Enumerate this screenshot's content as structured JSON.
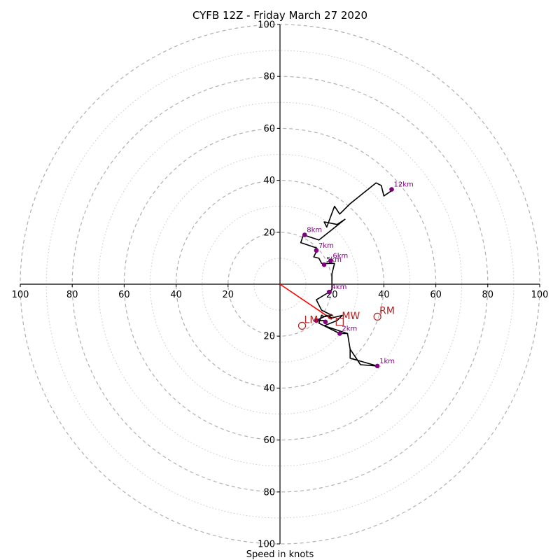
{
  "chart_data": {
    "type": "hodograph",
    "title": "CYFB 12Z - Friday March 27 2020",
    "xlabel": "Speed in knots",
    "ylabel": "",
    "range": [
      -100,
      100
    ],
    "grid": true,
    "rings_major": [
      20,
      40,
      60,
      80,
      100
    ],
    "rings_minor": [
      10,
      30,
      50,
      70,
      90
    ],
    "x_ticks": [
      {
        "v": -100,
        "label": "100"
      },
      {
        "v": -80,
        "label": "80"
      },
      {
        "v": -60,
        "label": "60"
      },
      {
        "v": -40,
        "label": "40"
      },
      {
        "v": -20,
        "label": "20"
      },
      {
        "v": 20,
        "label": "20"
      },
      {
        "v": 40,
        "label": "40"
      },
      {
        "v": 60,
        "label": "60"
      },
      {
        "v": 80,
        "label": "80"
      },
      {
        "v": 100,
        "label": "100"
      }
    ],
    "y_ticks": [
      {
        "v": 100,
        "label": "100"
      },
      {
        "v": 80,
        "label": "80"
      },
      {
        "v": 60,
        "label": "60"
      },
      {
        "v": 40,
        "label": "40"
      },
      {
        "v": 20,
        "label": "20"
      },
      {
        "v": -20,
        "label": "20"
      },
      {
        "v": -40,
        "label": "40"
      },
      {
        "v": -60,
        "label": "60"
      },
      {
        "v": -80,
        "label": "80"
      },
      {
        "v": -100,
        "label": "100"
      }
    ],
    "hodograph_line": {
      "color": "#000000",
      "points": [
        [
          17,
          -14
        ],
        [
          14,
          -14
        ],
        [
          18,
          -12
        ],
        [
          20,
          -13
        ],
        [
          24,
          -12
        ],
        [
          22,
          -14
        ],
        [
          17,
          -16
        ],
        [
          26,
          -19
        ],
        [
          27,
          -25
        ],
        [
          31,
          -31
        ],
        [
          37.5,
          -31.5
        ],
        [
          27,
          -28.5
        ],
        [
          27,
          -25
        ],
        [
          26,
          -19
        ],
        [
          23,
          -19
        ],
        [
          15,
          -15
        ],
        [
          16,
          -12
        ],
        [
          17,
          -12.5
        ],
        [
          20,
          -12
        ],
        [
          16,
          -10
        ],
        [
          14,
          -6
        ],
        [
          19,
          -3
        ],
        [
          20,
          -2
        ],
        [
          20,
          4
        ],
        [
          21,
          8
        ],
        [
          19,
          8
        ],
        [
          17,
          8
        ],
        [
          16,
          8
        ],
        [
          15,
          10
        ],
        [
          13,
          10.5
        ],
        [
          14,
          12.5
        ],
        [
          14,
          14
        ],
        [
          8,
          16
        ],
        [
          9,
          19
        ],
        [
          15,
          17
        ],
        [
          20,
          21
        ],
        [
          25,
          25
        ],
        [
          22,
          23
        ],
        [
          17,
          24
        ],
        [
          18,
          22
        ],
        [
          21,
          30
        ],
        [
          23,
          27
        ],
        [
          27,
          31
        ],
        [
          32,
          35
        ],
        [
          37,
          39
        ],
        [
          39,
          38
        ],
        [
          40,
          34
        ],
        [
          43,
          36
        ]
      ]
    },
    "height_markers": {
      "color": "#800080",
      "points": [
        {
          "u": 37.5,
          "v": -31.5,
          "label": "1km"
        },
        {
          "u": 23,
          "v": -19,
          "label": "2km"
        },
        {
          "u": 14,
          "v": -14,
          "label": ""
        },
        {
          "u": 17.5,
          "v": -14.5,
          "label": ""
        },
        {
          "u": 19,
          "v": -3,
          "label": "4km"
        },
        {
          "u": 17,
          "v": 7.5,
          "label": "5km"
        },
        {
          "u": 19.5,
          "v": 9,
          "label": "6km"
        },
        {
          "u": 14,
          "v": 13,
          "label": "7km"
        },
        {
          "u": 9.5,
          "v": 19,
          "label": "8km"
        },
        {
          "u": 43,
          "v": 36.5,
          "label": "12km"
        }
      ]
    },
    "shear_line": {
      "color": "#ff0000",
      "from": [
        0,
        0
      ],
      "to": [
        20,
        -13.5
      ]
    },
    "storm_motion": [
      {
        "name": "RM",
        "u": 37.5,
        "v": -12.5,
        "marker": "circle"
      },
      {
        "name": "LM",
        "u": 8.5,
        "v": -16,
        "marker": "circle"
      },
      {
        "name": "MW",
        "u": 23,
        "v": -14.5,
        "marker": "square"
      },
      {
        "name": "",
        "u": 19.5,
        "v": -12.5,
        "marker": "small-circle"
      }
    ],
    "storm_color": "#b22222"
  }
}
